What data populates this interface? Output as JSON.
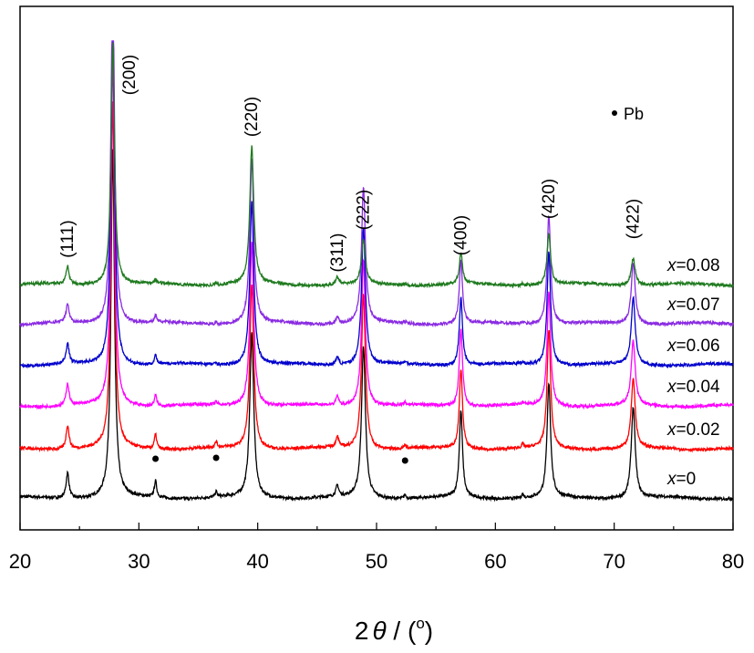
{
  "chart_data": {
    "type": "line",
    "title": "",
    "xlabel": {
      "prefix": "2",
      "symbol": "θ",
      "suffix_pre": " / (",
      "sup": "o",
      "suffix_post": ")"
    },
    "ylabel": "",
    "xlim": [
      20,
      80
    ],
    "xticks": [
      20,
      30,
      40,
      50,
      60,
      70,
      80
    ],
    "xtick_labels": [
      "20",
      "30",
      "40",
      "50",
      "60",
      "70",
      "80"
    ],
    "y_axis_ticks": false,
    "grid": false,
    "peak_positions": [
      24.0,
      27.8,
      31.4,
      36.5,
      39.5,
      46.7,
      48.9,
      52.4,
      57.1,
      62.3,
      64.5,
      71.6
    ],
    "series": [
      {
        "name_var": "x",
        "name_value": "=0",
        "color": "#000000",
        "peak_heights": [
          28,
          380,
          18,
          6,
          180,
          12,
          165,
          4,
          95,
          4,
          125,
          100
        ]
      },
      {
        "name_var": "x",
        "name_value": "=0.02",
        "color": "#ff0000",
        "peak_heights": [
          26,
          380,
          16,
          6,
          180,
          12,
          170,
          4,
          88,
          4,
          130,
          76
        ]
      },
      {
        "name_var": "x",
        "name_value": "=0.04",
        "color": "#ff00ff",
        "peak_heights": [
          24,
          380,
          12,
          3,
          180,
          10,
          160,
          2,
          85,
          2,
          124,
          70
        ]
      },
      {
        "name_var": "x",
        "name_value": "=0.06",
        "color": "#0000cc",
        "peak_heights": [
          22,
          380,
          10,
          2,
          180,
          9,
          150,
          2,
          74,
          2,
          124,
          74
        ]
      },
      {
        "name_var": "x",
        "name_value": "=0.07",
        "color": "#8a2be2",
        "peak_heights": [
          20,
          380,
          8,
          2,
          180,
          8,
          148,
          2,
          70,
          2,
          120,
          68
        ]
      },
      {
        "name_var": "x",
        "name_value": "=0.08",
        "color": "#1f7a1f",
        "peak_heights": [
          20,
          265,
          4,
          2,
          150,
          8,
          48,
          2,
          34,
          2,
          56,
          30
        ]
      }
    ],
    "annotations": [
      {
        "text": "(111)",
        "x": 24.0
      },
      {
        "text": "(200)",
        "x": 29.2
      },
      {
        "text": "(220)",
        "x": 39.5
      },
      {
        "text": "(311)",
        "x": 46.7
      },
      {
        "text": "(222)",
        "x": 48.9
      },
      {
        "text": "(400)",
        "x": 57.1
      },
      {
        "text": "(420)",
        "x": 64.5
      },
      {
        "text": "(422)",
        "x": 71.6
      }
    ],
    "pb_markers_x": [
      31.4,
      36.5,
      52.4
    ],
    "legend": {
      "marker": "dot",
      "text": "Pb",
      "placement": "top-right"
    }
  }
}
